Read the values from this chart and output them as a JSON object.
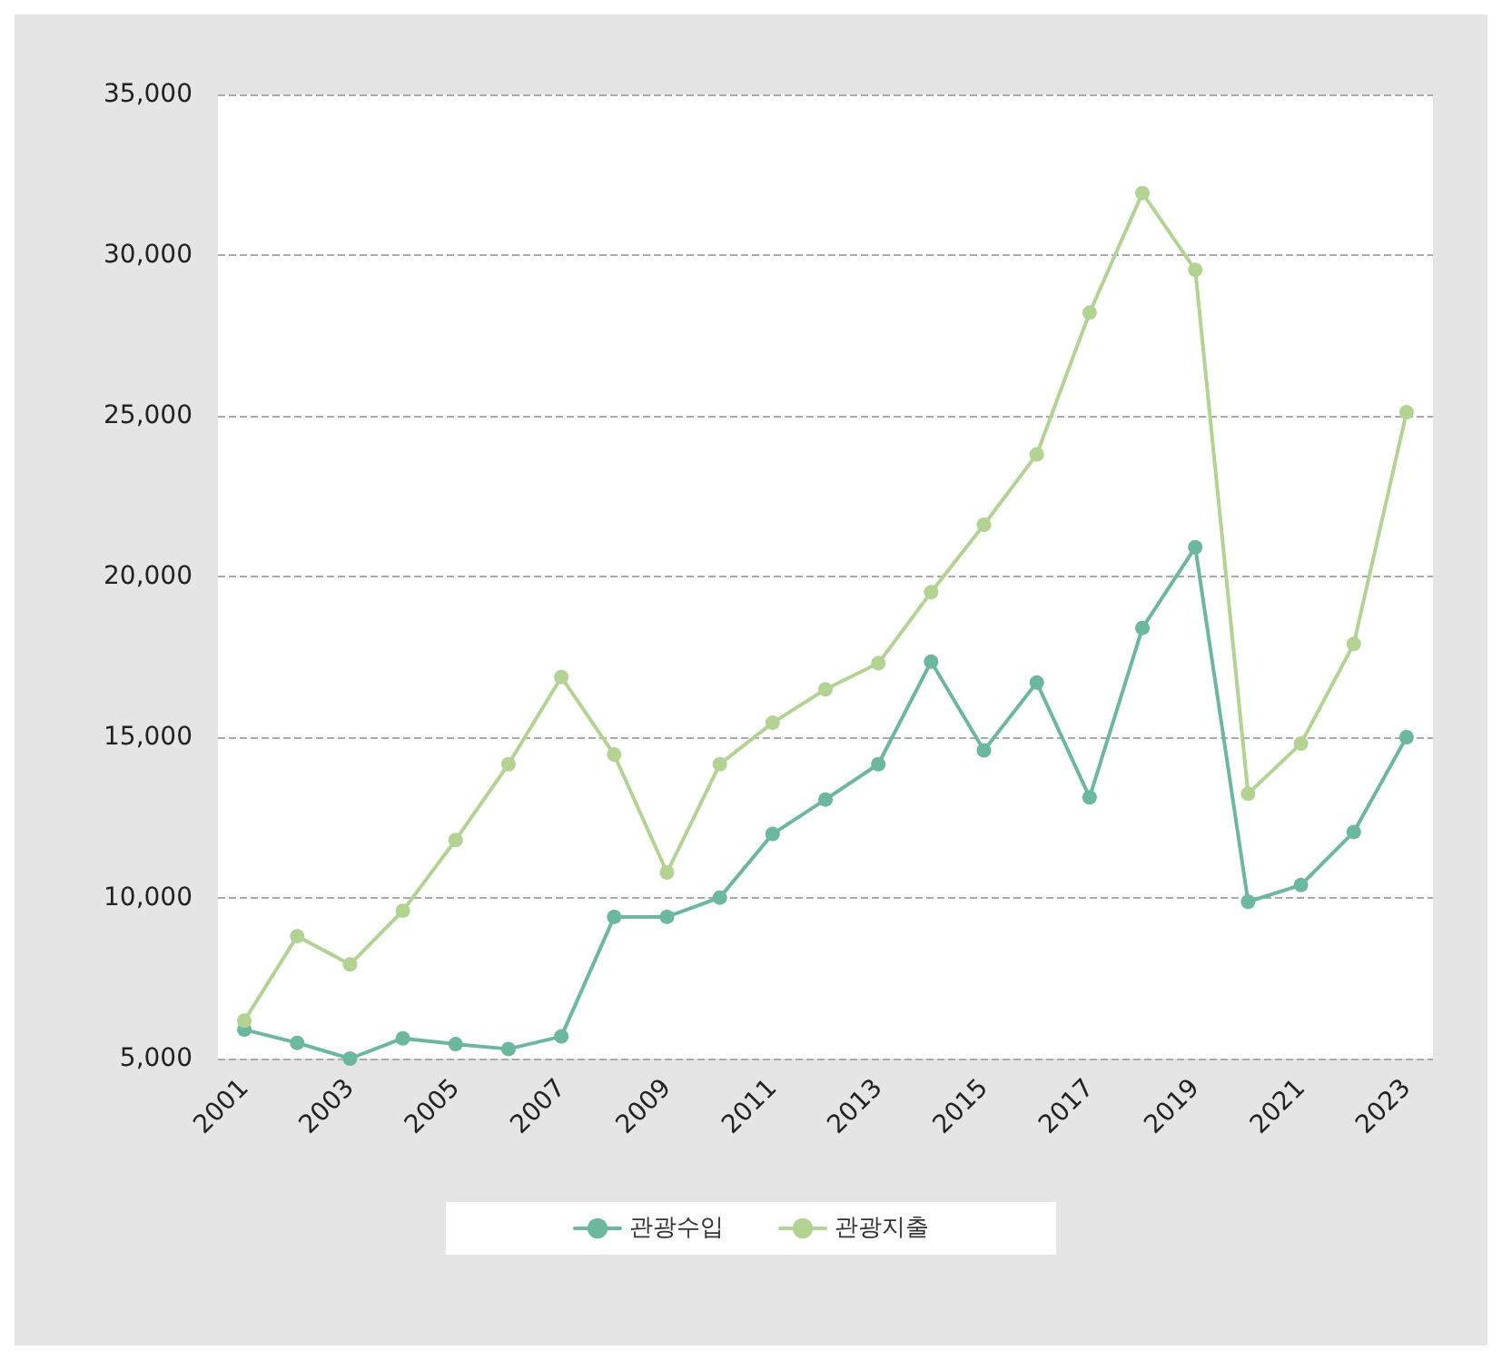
{
  "chart_data": {
    "type": "line",
    "categories": [
      "2001",
      null,
      "2003",
      null,
      "2005",
      null,
      "2007",
      null,
      "2009",
      null,
      "2011",
      null,
      "2013",
      null,
      "2015",
      null,
      "2017",
      null,
      "2019",
      null,
      "2021",
      null,
      "2023"
    ],
    "series": [
      {
        "name": "관광수입",
        "color": "#6bb89c",
        "values": [
          5900,
          5490,
          5000,
          5630,
          5450,
          5300,
          5690,
          9410,
          9410,
          10010,
          11990,
          13060,
          14160,
          17350,
          14590,
          16700,
          13130,
          18400,
          20910,
          9880,
          10400,
          12050,
          15000
        ]
      },
      {
        "name": "관광지출",
        "color": "#b3d393",
        "values": [
          6180,
          8810,
          7930,
          9600,
          11800,
          14160,
          16870,
          14460,
          10790,
          14160,
          15450,
          16490,
          17300,
          19510,
          21610,
          23800,
          28210,
          31930,
          29540,
          13240,
          14800,
          17900,
          25110
        ]
      }
    ],
    "ylim": [
      5000,
      35000
    ],
    "yticks": [
      {
        "value": 5000,
        "label": "5,000"
      },
      {
        "value": 10000,
        "label": "10,000"
      },
      {
        "value": 15000,
        "label": "15,000"
      },
      {
        "value": 20000,
        "label": "20,000"
      },
      {
        "value": 25000,
        "label": "25,000"
      },
      {
        "value": 30000,
        "label": "30,000"
      },
      {
        "value": 35000,
        "label": "35,000"
      }
    ],
    "grid": "y",
    "legend": "bottom",
    "marker": "circle",
    "line_style": "solid"
  }
}
